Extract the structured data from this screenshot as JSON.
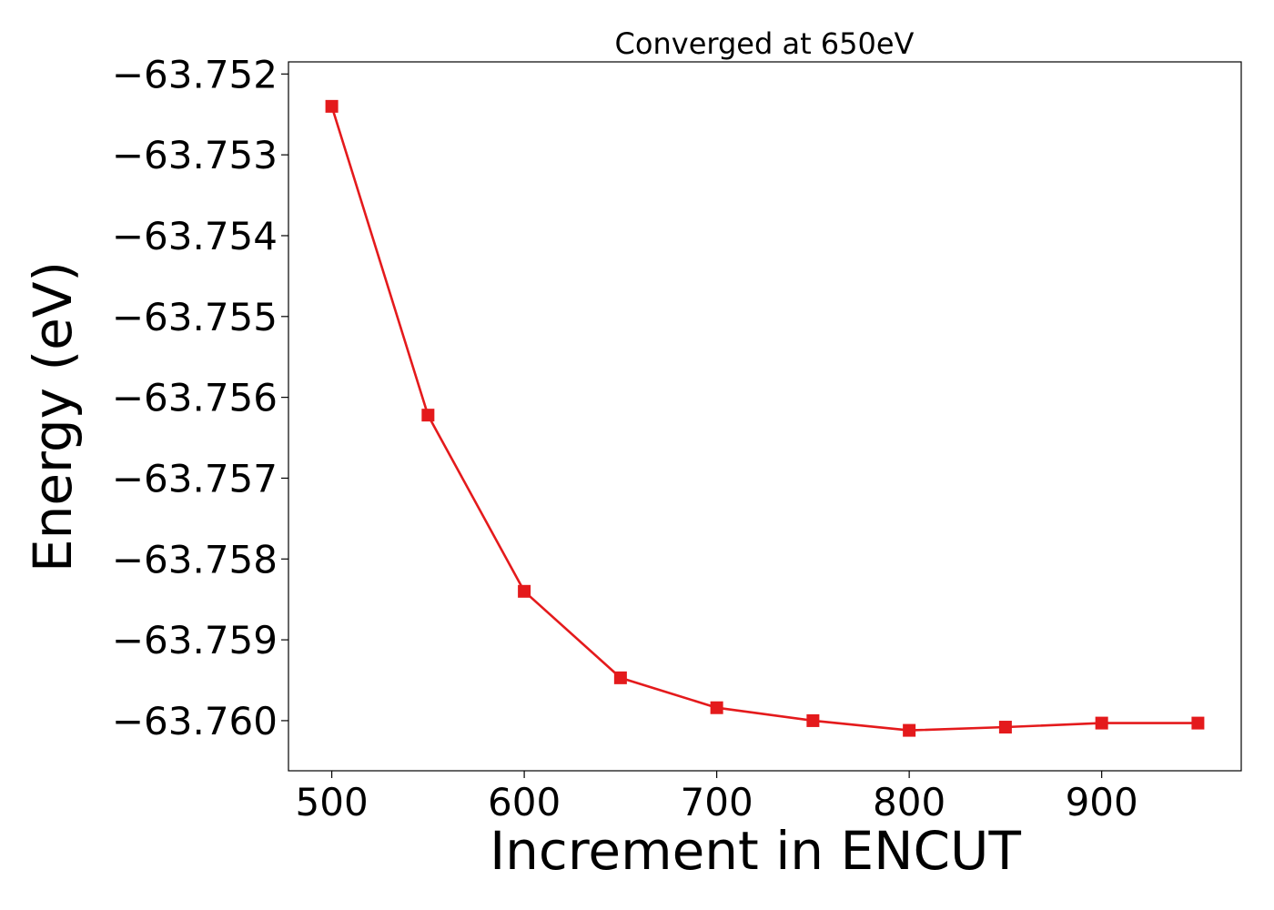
{
  "chart_data": {
    "type": "line",
    "title": "Converged at 650eV",
    "xlabel": "Increment in ENCUT",
    "ylabel": "Energy (eV)",
    "x": [
      500,
      550,
      600,
      650,
      700,
      750,
      800,
      850,
      900,
      950
    ],
    "series": [
      {
        "values": [
          -63.7524,
          -63.75622,
          -63.7584,
          -63.75947,
          -63.75984,
          -63.76,
          -63.76012,
          -63.76008,
          -63.76003,
          -63.76003
        ],
        "color": "#e41a1c",
        "marker": "square"
      }
    ],
    "xlim": [
      477.5,
      972.5
    ],
    "ylim": [
      -63.76062,
      -63.75185
    ],
    "xticks": [
      500,
      600,
      700,
      800,
      900
    ],
    "xtick_labels": [
      "500",
      "600",
      "700",
      "800",
      "900"
    ],
    "yticks": [
      -63.752,
      -63.753,
      -63.754,
      -63.755,
      -63.756,
      -63.757,
      -63.758,
      -63.759,
      -63.76
    ],
    "ytick_labels": [
      "−63.752",
      "−63.753",
      "−63.754",
      "−63.755",
      "−63.756",
      "−63.757",
      "−63.758",
      "−63.759",
      "−63.760"
    ],
    "grid": false,
    "legend": false
  }
}
